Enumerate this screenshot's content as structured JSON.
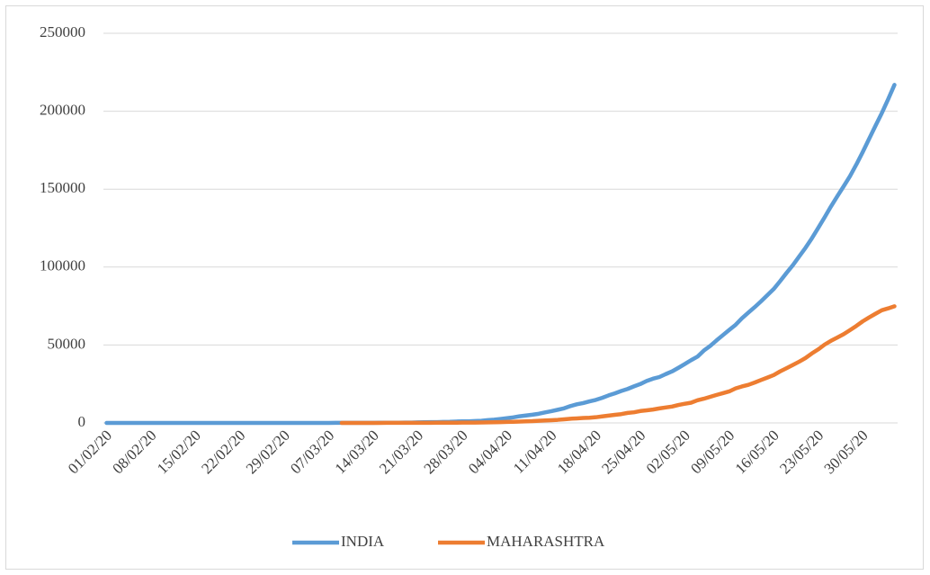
{
  "chart_data": {
    "type": "line",
    "categories": [
      "01/02/20",
      null,
      null,
      null,
      null,
      null,
      null,
      "08/02/20",
      null,
      null,
      null,
      null,
      null,
      null,
      "15/02/20",
      null,
      null,
      null,
      null,
      null,
      null,
      "22/02/20",
      null,
      null,
      null,
      null,
      null,
      null,
      "29/02/20",
      null,
      null,
      null,
      null,
      null,
      null,
      "07/03/20",
      null,
      null,
      null,
      null,
      null,
      null,
      "14/03/20",
      null,
      null,
      null,
      null,
      null,
      null,
      "21/03/20",
      null,
      null,
      null,
      null,
      null,
      null,
      "28/03/20",
      null,
      null,
      null,
      null,
      null,
      null,
      "04/04/20",
      null,
      null,
      null,
      null,
      null,
      null,
      "11/04/20",
      null,
      null,
      null,
      null,
      null,
      null,
      "18/04/20",
      null,
      null,
      null,
      null,
      null,
      null,
      "25/04/20",
      null,
      null,
      null,
      null,
      null,
      null,
      "02/05/20",
      null,
      null,
      null,
      null,
      null,
      null,
      "09/05/20",
      null,
      null,
      null,
      null,
      null,
      null,
      "16/05/20",
      null,
      null,
      null,
      null,
      null,
      null,
      "23/05/20",
      null,
      null,
      null,
      null,
      null,
      null,
      "30/05/20",
      null,
      null,
      null,
      null,
      null
    ],
    "series": [
      {
        "name": "INDIA",
        "color": "#5b9bd5",
        "values": [
          1,
          2,
          3,
          3,
          3,
          3,
          3,
          3,
          3,
          3,
          3,
          3,
          3,
          3,
          3,
          3,
          3,
          3,
          3,
          3,
          3,
          3,
          3,
          3,
          3,
          3,
          3,
          3,
          3,
          3,
          5,
          6,
          28,
          30,
          31,
          34,
          39,
          43,
          56,
          62,
          73,
          82,
          102,
          113,
          119,
          142,
          156,
          194,
          244,
          330,
          396,
          499,
          536,
          657,
          727,
          887,
          987,
          1024,
          1251,
          1397,
          1834,
          2069,
          2547,
          3072,
          3577,
          4281,
          4789,
          5274,
          5865,
          6761,
          7529,
          8447,
          9352,
          10815,
          11933,
          12759,
          13835,
          14792,
          16116,
          17656,
          18985,
          20471,
          21797,
          23452,
          24942,
          26917,
          28380,
          29451,
          31324,
          33062,
          35365,
          37776,
          40263,
          42533,
          46433,
          49391,
          52952,
          56342,
          59662,
          62939,
          67152,
          70756,
          74281,
          78003,
          81970,
          85940,
          90927,
          96169,
          101139,
          106750,
          112359,
          118447,
          125101,
          131868,
          138845,
          145380,
          151767,
          158333,
          165799,
          173763,
          182143,
          190535,
          198706,
          207615,
          216919
        ]
      },
      {
        "name": "MAHARASHTRA",
        "color": "#ed7d31",
        "values": [
          null,
          null,
          null,
          null,
          null,
          null,
          null,
          null,
          null,
          null,
          null,
          null,
          null,
          null,
          null,
          null,
          null,
          null,
          null,
          null,
          null,
          null,
          null,
          null,
          null,
          null,
          null,
          null,
          null,
          null,
          null,
          null,
          null,
          null,
          null,
          null,
          null,
          2,
          5,
          11,
          14,
          17,
          26,
          32,
          38,
          41,
          45,
          49,
          52,
          64,
          74,
          97,
          107,
          122,
          130,
          153,
          186,
          203,
          220,
          302,
          335,
          423,
          490,
          635,
          748,
          868,
          1018,
          1135,
          1364,
          1574,
          1761,
          1982,
          2334,
          2687,
          2916,
          3202,
          3323,
          3648,
          4200,
          4666,
          5218,
          5652,
          6427,
          6817,
          7628,
          8068,
          8590,
          9318,
          9915,
          10498,
          11506,
          12296,
          12974,
          14541,
          15525,
          16758,
          17974,
          19063,
          20228,
          22171,
          23401,
          24427,
          25922,
          27524,
          29100,
          30706,
          33053,
          35058,
          37136,
          39297,
          41642,
          44582,
          47190,
          50231,
          52667,
          54758,
          56948,
          59546,
          62228,
          65168,
          67655,
          70013,
          72300,
          73500,
          74860
        ]
      }
    ],
    "ylim": [
      0,
      250000
    ],
    "yticks": [
      0,
      50000,
      100000,
      150000,
      200000,
      250000
    ],
    "grid": true,
    "legend": "bottom"
  }
}
